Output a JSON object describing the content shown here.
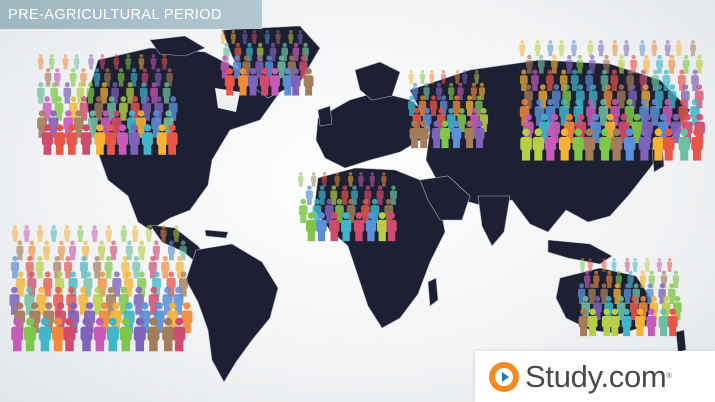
{
  "slide": {
    "title": "PRE-AGRICULTURAL PERIOD"
  },
  "map": {
    "land_color": "#1d1f33",
    "border_color": "#aeb3c4",
    "background_color": "#f2f4f6"
  },
  "crowds": {
    "palette": [
      "#e8564a",
      "#f5b335",
      "#7fc74a",
      "#3fb6c9",
      "#7e63b8",
      "#c95bb8",
      "#ef8a3a",
      "#b6cf44",
      "#5b8fd6",
      "#cf4c6e",
      "#6fc0a3",
      "#a37c5a"
    ],
    "groups": [
      "north-america-crowd",
      "greenland-crowd",
      "europe-crowd",
      "asia-crowd",
      "africa-crowd",
      "south-america-crowd",
      "australia-crowd"
    ]
  },
  "logo": {
    "text": "Study.com",
    "trademark": "®"
  }
}
